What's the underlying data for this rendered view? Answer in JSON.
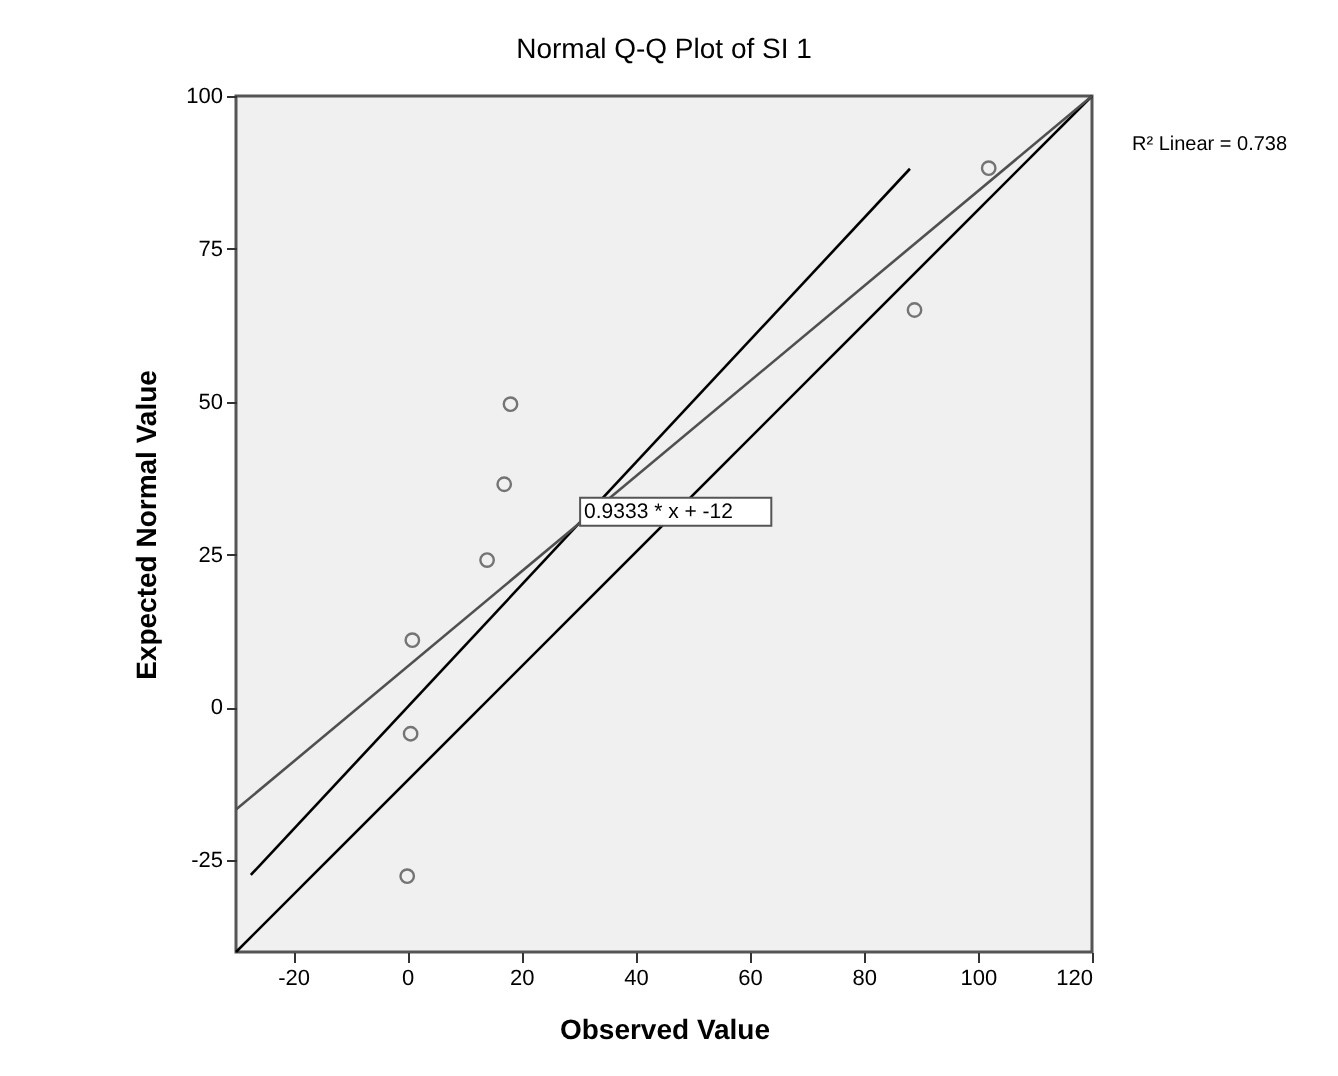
{
  "chart_data": {
    "type": "scatter",
    "title": "Normal Q-Q Plot of SI 1",
    "xlabel": "Observed Value",
    "ylabel": "Expected Normal Value",
    "xlim": [
      -30,
      120
    ],
    "ylim": [
      -40,
      100
    ],
    "xticks": [
      -20,
      0,
      20,
      40,
      60,
      80,
      100,
      120
    ],
    "yticks": [
      -25,
      0,
      25,
      50,
      75,
      100
    ],
    "grid": false,
    "series": [
      {
        "marker": "circle",
        "color": "#404040",
        "x": [
          18.1,
          17.0,
          14.0,
          0.9,
          0.6,
          0.0,
          101.9,
          88.9
        ],
        "values": [
          49.6,
          36.5,
          24.1,
          11.0,
          -4.3,
          -27.6,
          88.2,
          65.0
        ]
      },
      {
        "type": "line",
        "line_style": "solid",
        "color": "#000000",
        "x": [
          -30,
          120
        ],
        "values": [
          -40,
          100
        ]
      },
      {
        "type": "line",
        "line_style": "solid",
        "color": "#000000",
        "x": [
          -27.4,
          88.1
        ],
        "values": [
          -27.4,
          88.1
        ]
      },
      {
        "type": "line",
        "line_style": "solid",
        "color": "#505050",
        "x": [
          -30,
          120
        ],
        "values": [
          -16.7,
          100
        ]
      }
    ],
    "annotations": [
      {
        "text": "0.9333 * x + -12",
        "x": 31,
        "y": 32
      },
      "R² Linear = 0.738"
    ]
  }
}
